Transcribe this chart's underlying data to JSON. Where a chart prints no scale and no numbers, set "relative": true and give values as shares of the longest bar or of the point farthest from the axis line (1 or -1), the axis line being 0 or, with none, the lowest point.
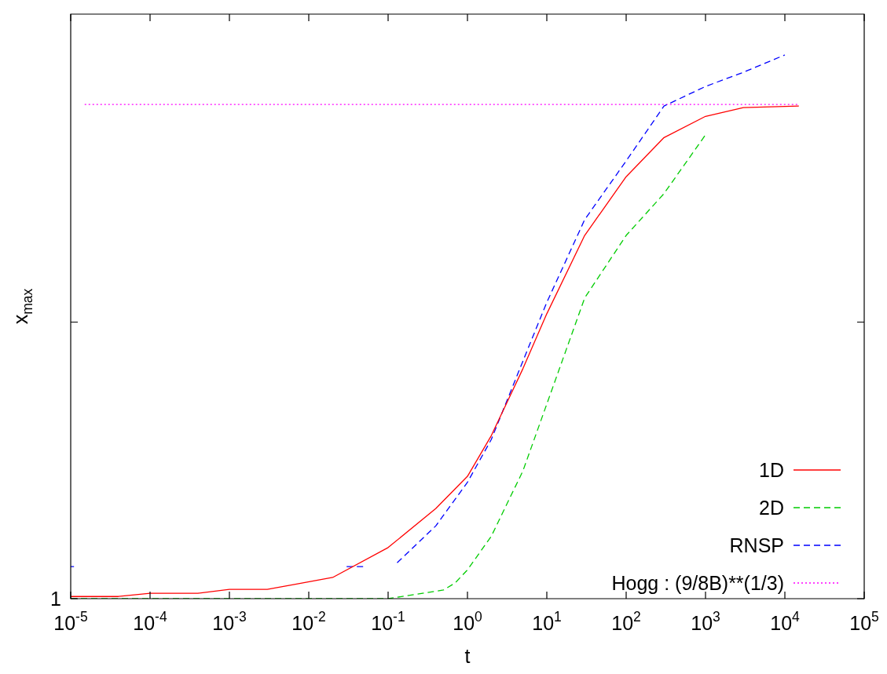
{
  "chart_data": {
    "type": "line",
    "relative": true,
    "log": "x",
    "xlabel": "t",
    "ylabel": "x$_{max}$",
    "annotations": [
      "1"
    ],
    "xlim": [
      1e-05,
      100000.0
    ],
    "xticks": [
      {
        "value": 1e-05,
        "label": "10$^{-5}$"
      },
      {
        "value": 0.0001,
        "label": "10$^{-4}$"
      },
      {
        "value": 0.001,
        "label": "10$^{-3}$"
      },
      {
        "value": 0.01,
        "label": "10$^{-2}$"
      },
      {
        "value": 0.1,
        "label": "10$^{-1}$"
      },
      {
        "value": 1,
        "label": "10$^{0}$"
      },
      {
        "value": 10,
        "label": "10$^{1}$"
      },
      {
        "value": 100,
        "label": "10$^{2}$"
      },
      {
        "value": 1000,
        "label": "10$^{3}$"
      },
      {
        "value": 10000,
        "label": "10$^{4}$"
      },
      {
        "value": 100000,
        "label": "10$^{5}$"
      }
    ],
    "grid": false,
    "legend": "bottom right",
    "marker": "none",
    "series": [
      {
        "name": "1D",
        "color": "#ff0000",
        "line_style": "solid",
        "x": [
          1e-05,
          4e-05,
          0.0001,
          0.0004,
          0.001,
          0.003,
          0.007,
          0.02,
          0.1,
          0.4,
          1,
          2,
          5,
          10,
          30,
          100,
          300,
          1000,
          3000,
          15000
        ],
        "values": [
          0.004,
          0.004,
          0.01,
          0.01,
          0.017,
          0.017,
          0.027,
          0.039,
          0.094,
          0.166,
          0.225,
          0.3,
          0.423,
          0.524,
          0.668,
          0.776,
          0.848,
          0.887,
          0.903,
          0.906
        ]
      },
      {
        "name": "2D",
        "color": "#00cc00",
        "line_style": "dashed",
        "x": [
          1e-05,
          0.1,
          0.5,
          0.7,
          1,
          2,
          5,
          10,
          30,
          100,
          300,
          1000
        ],
        "values": [
          0,
          0,
          0.016,
          0.029,
          0.053,
          0.115,
          0.235,
          0.358,
          0.553,
          0.668,
          0.745,
          0.853
        ]
      },
      {
        "name": "RNSP",
        "color": "#0000ff",
        "line_style": "dashed",
        "x": [
          1e-05,
          1.1e-05,
          0.001,
          0.03,
          0.05,
          0.08,
          0.13,
          0.4,
          1,
          2,
          5,
          10,
          30,
          100,
          300,
          1000,
          3000,
          10000
        ],
        "values": [
          0.059,
          0.059,
          null,
          0.059,
          0.059,
          null,
          0.066,
          0.134,
          0.214,
          0.293,
          0.437,
          0.545,
          0.697,
          0.805,
          0.906,
          0.942,
          0.968,
          1
        ]
      },
      {
        "name": "Hogg : (9/8B)**(1/3)",
        "color": "#ff00ff",
        "line_style": "dotted",
        "x": [
          1.5e-05,
          15000
        ],
        "values": [
          0.909,
          0.909
        ]
      }
    ]
  }
}
